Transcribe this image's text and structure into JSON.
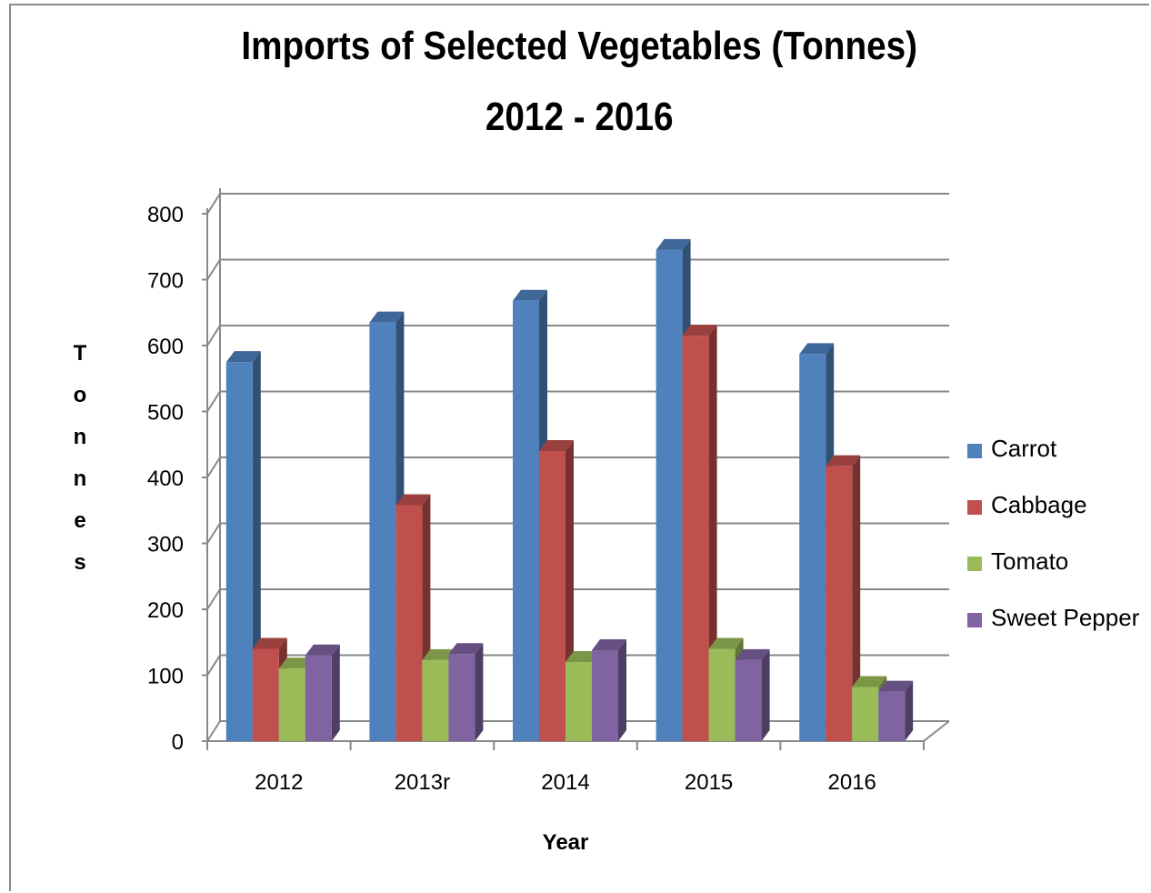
{
  "chart_data": {
    "type": "bar",
    "title": "Imports of Selected Vegetables (Tonnes)",
    "subtitle": "2012 - 2016",
    "xlabel": "Year",
    "ylabel": "Tonnes",
    "categories": [
      "2012",
      "2013r",
      "2014",
      "2015",
      "2016"
    ],
    "series": [
      {
        "name": "Carrot",
        "color": "#4F81BD",
        "values": [
          575,
          635,
          668,
          745,
          587
        ]
      },
      {
        "name": "Cabbage",
        "color": "#C0504D",
        "values": [
          140,
          358,
          440,
          615,
          417
        ]
      },
      {
        "name": "Tomato",
        "color": "#9BBB59",
        "values": [
          110,
          123,
          120,
          140,
          82
        ]
      },
      {
        "name": "Sweet Pepper",
        "color": "#8064A2",
        "values": [
          130,
          132,
          138,
          123,
          75
        ]
      }
    ],
    "ylim": [
      0,
      800
    ],
    "yticks": [
      "0",
      "100",
      "200",
      "300",
      "400",
      "500",
      "600",
      "700",
      "800"
    ],
    "grid": true,
    "legend_position": "right",
    "style": "3d-clustered-column"
  }
}
